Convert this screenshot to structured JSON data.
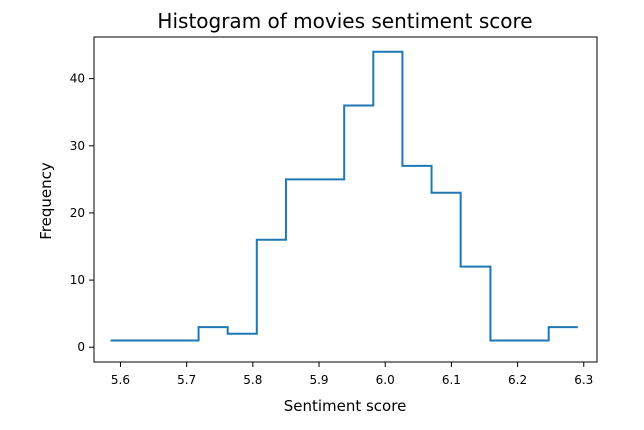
{
  "chart_data": {
    "type": "histogram",
    "style": "step",
    "title": "Histogram of movies sentiment score",
    "xlabel": "Sentiment score",
    "ylabel": "Frequency",
    "xlim": [
      5.56,
      6.32
    ],
    "ylim": [
      -2.2,
      46.2
    ],
    "x_ticks": [
      "5.6",
      "5.7",
      "5.8",
      "5.9",
      "6.0",
      "6.1",
      "6.2",
      "6.3"
    ],
    "x_tick_values": [
      5.6,
      5.7,
      5.8,
      5.9,
      6.0,
      6.1,
      6.2,
      6.3
    ],
    "y_ticks": [
      "0",
      "10",
      "20",
      "30",
      "40"
    ],
    "y_tick_values": [
      0,
      10,
      20,
      30,
      40
    ],
    "bin_edges": [
      5.585,
      5.629,
      5.673,
      5.718,
      5.762,
      5.806,
      5.85,
      5.894,
      5.938,
      5.982,
      6.026,
      6.07,
      6.114,
      6.159,
      6.203,
      6.247,
      6.291
    ],
    "counts": [
      1,
      1,
      1,
      3,
      2,
      16,
      25,
      25,
      36,
      44,
      27,
      23,
      12,
      1,
      1,
      3
    ],
    "line_color": "#1f77b4",
    "grid": false
  }
}
